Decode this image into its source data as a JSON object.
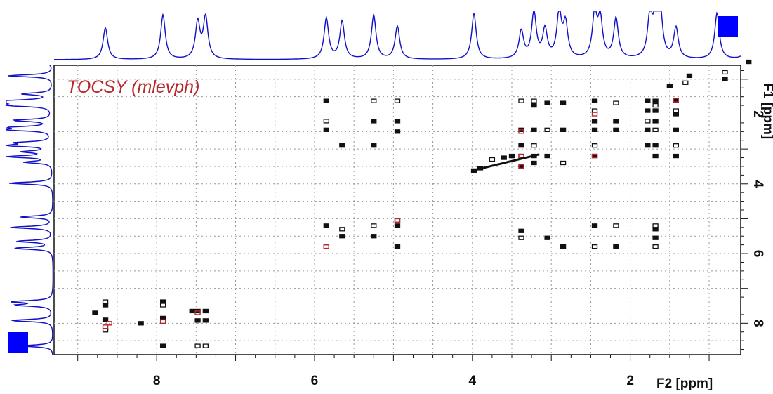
{
  "chart_data": {
    "type": "heatmap",
    "title": "TOCSY (mlevph)",
    "xlabel": "F2 [ppm]",
    "ylabel": "F1 [ppm]",
    "xlim": [
      9.3,
      0.6
    ],
    "ylim": [
      0.6,
      8.9
    ],
    "x_ticks": [
      8,
      6,
      4,
      2
    ],
    "y_ticks": [
      2,
      4,
      6,
      8
    ],
    "grid": true,
    "projection_peaks": [
      8.65,
      7.92,
      7.48,
      7.38,
      5.85,
      5.65,
      5.25,
      4.95,
      3.98,
      3.38,
      3.22,
      3.08,
      2.9,
      2.82,
      2.45,
      2.38,
      2.18,
      1.75,
      1.68,
      1.62,
      1.42,
      0.9,
      0.5
    ],
    "phase_legend": {
      "positive_color": "#111111",
      "negative_color": "#b5282b",
      "projection_color": "#1010c8",
      "marker_color": "#0000ff"
    },
    "crosspeaks": [
      [
        0.5,
        0.5
      ],
      [
        0.8,
        0.8
      ],
      [
        0.8,
        1.0
      ],
      [
        1.25,
        0.9
      ],
      [
        1.3,
        1.1
      ],
      [
        1.5,
        1.2
      ],
      [
        1.42,
        1.62
      ],
      [
        1.42,
        1.9
      ],
      [
        1.42,
        2.0
      ],
      [
        1.42,
        2.45
      ],
      [
        1.42,
        2.9
      ],
      [
        1.42,
        3.2
      ],
      [
        1.68,
        1.62
      ],
      [
        1.68,
        1.75
      ],
      [
        1.68,
        1.9
      ],
      [
        1.68,
        2.2
      ],
      [
        1.68,
        2.45
      ],
      [
        1.68,
        2.9
      ],
      [
        1.68,
        3.2
      ],
      [
        1.68,
        5.2
      ],
      [
        1.68,
        5.3
      ],
      [
        1.68,
        5.55
      ],
      [
        1.68,
        5.8
      ],
      [
        1.78,
        1.62
      ],
      [
        1.78,
        1.9
      ],
      [
        1.78,
        2.2
      ],
      [
        1.78,
        2.45
      ],
      [
        1.78,
        2.9
      ],
      [
        2.18,
        1.68
      ],
      [
        2.18,
        2.2
      ],
      [
        2.18,
        2.45
      ],
      [
        2.18,
        5.2
      ],
      [
        2.18,
        5.8
      ],
      [
        2.45,
        1.62
      ],
      [
        2.45,
        1.9
      ],
      [
        2.45,
        2.2
      ],
      [
        2.45,
        2.45
      ],
      [
        2.45,
        2.9
      ],
      [
        2.45,
        3.2
      ],
      [
        2.45,
        5.2
      ],
      [
        2.45,
        5.8
      ],
      [
        2.85,
        1.68
      ],
      [
        2.85,
        2.45
      ],
      [
        2.85,
        3.4
      ],
      [
        2.85,
        5.8
      ],
      [
        3.05,
        1.68
      ],
      [
        3.05,
        2.45
      ],
      [
        3.05,
        3.2
      ],
      [
        3.05,
        5.55
      ],
      [
        3.22,
        1.62
      ],
      [
        3.22,
        1.75
      ],
      [
        3.22,
        2.45
      ],
      [
        3.22,
        2.9
      ],
      [
        3.22,
        3.2
      ],
      [
        3.22,
        3.4
      ],
      [
        3.38,
        1.62
      ],
      [
        3.38,
        2.45
      ],
      [
        3.38,
        2.9
      ],
      [
        3.38,
        3.2
      ],
      [
        3.38,
        3.5
      ],
      [
        3.38,
        5.35
      ],
      [
        3.38,
        5.55
      ],
      [
        3.5,
        3.2
      ],
      [
        3.6,
        3.25
      ],
      [
        3.75,
        3.3
      ],
      [
        3.9,
        3.55
      ],
      [
        3.98,
        3.62
      ],
      [
        4.95,
        1.62
      ],
      [
        4.95,
        2.2
      ],
      [
        4.95,
        2.5
      ],
      [
        4.95,
        5.05
      ],
      [
        4.95,
        5.2
      ],
      [
        4.95,
        5.8
      ],
      [
        5.25,
        1.62
      ],
      [
        5.25,
        2.2
      ],
      [
        5.25,
        2.9
      ],
      [
        5.25,
        5.2
      ],
      [
        5.25,
        5.5
      ],
      [
        5.65,
        2.9
      ],
      [
        5.65,
        5.3
      ],
      [
        5.65,
        5.5
      ],
      [
        5.85,
        1.62
      ],
      [
        5.85,
        2.2
      ],
      [
        5.85,
        2.45
      ],
      [
        5.85,
        5.2
      ],
      [
        5.85,
        5.8
      ],
      [
        7.38,
        7.65
      ],
      [
        7.38,
        7.92
      ],
      [
        7.38,
        8.65
      ],
      [
        7.48,
        7.65
      ],
      [
        7.48,
        7.92
      ],
      [
        7.48,
        8.65
      ],
      [
        7.55,
        7.65
      ],
      [
        7.92,
        7.38
      ],
      [
        7.92,
        7.48
      ],
      [
        7.92,
        8.65
      ],
      [
        7.92,
        7.85
      ],
      [
        8.65,
        7.38
      ],
      [
        8.65,
        7.48
      ],
      [
        8.65,
        7.9
      ],
      [
        8.65,
        8.2
      ],
      [
        8.78,
        7.7
      ],
      [
        8.2,
        8.0
      ]
    ],
    "negative_peaks": [
      [
        3.38,
        3.2
      ],
      [
        3.38,
        3.5
      ],
      [
        2.45,
        2.0
      ],
      [
        1.42,
        1.6
      ],
      [
        4.95,
        5.05
      ],
      [
        5.85,
        5.8
      ],
      [
        8.65,
        8.1
      ],
      [
        7.92,
        7.95
      ],
      [
        7.48,
        7.7
      ],
      [
        2.45,
        3.2
      ],
      [
        3.38,
        2.5
      ],
      [
        8.6,
        8.0
      ]
    ]
  },
  "window": {
    "frame_color": "#111111",
    "grid_color": "#9a9a9a"
  }
}
